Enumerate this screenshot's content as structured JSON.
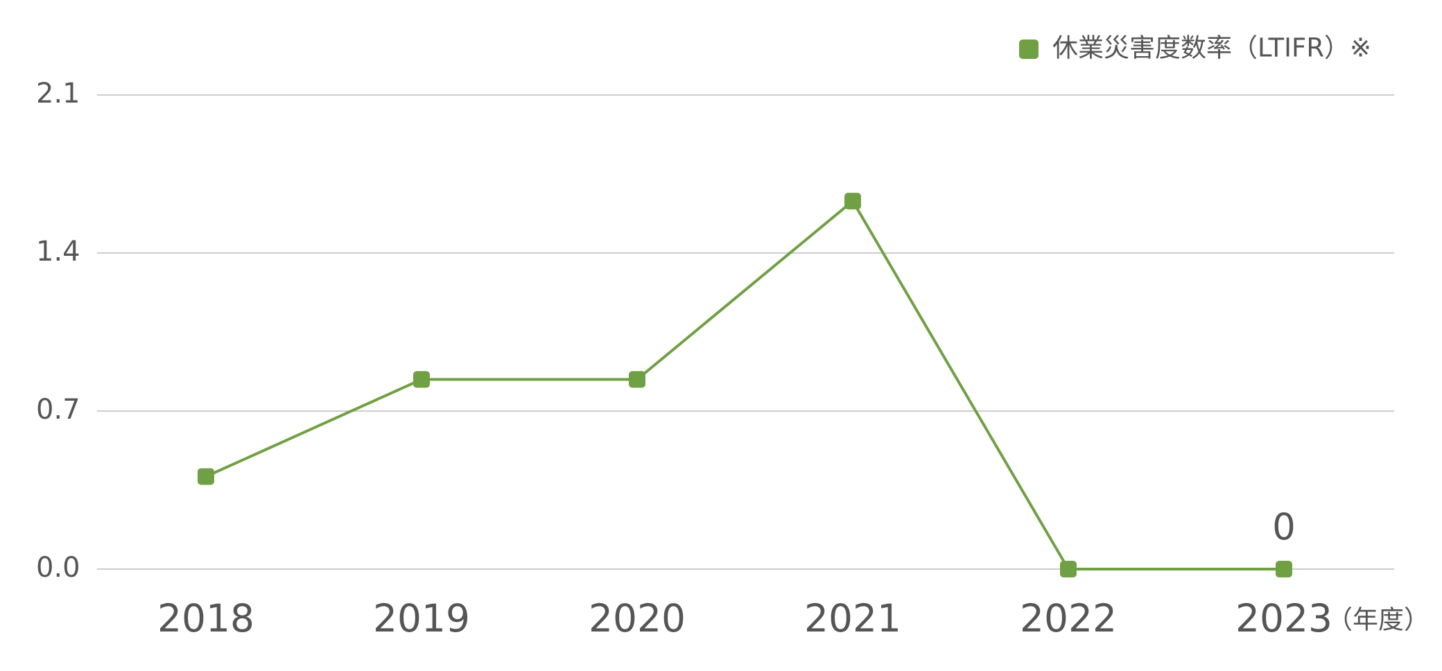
{
  "chart_data": {
    "type": "line",
    "categories": [
      "2018",
      "2019",
      "2020",
      "2021",
      "2022",
      "2023"
    ],
    "x_label": "（年度）",
    "series": [
      {
        "name": "休業災害度数率（LTIFR）※",
        "color": "#70a044",
        "values": [
          0.41,
          0.84,
          0.84,
          1.63,
          0,
          0
        ],
        "value_labels": [
          null,
          null,
          null,
          null,
          null,
          "0"
        ]
      }
    ],
    "ylim": [
      0,
      2.1
    ],
    "yticks": [
      {
        "value": 0,
        "label": "0.0"
      },
      0.7,
      1.4,
      2.1
    ],
    "grid": true,
    "legend": "top-right"
  }
}
